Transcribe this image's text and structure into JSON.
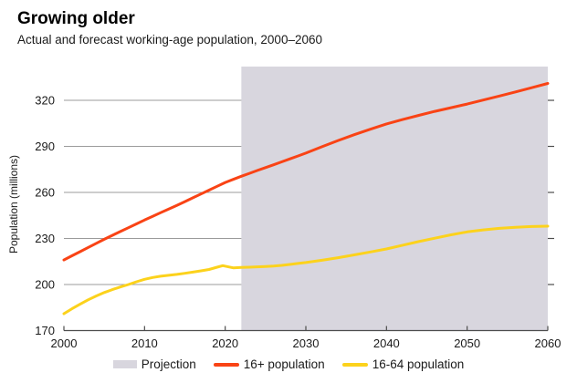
{
  "header": {
    "title": "Growing older",
    "subtitle": "Actual and forecast working-age population, 2000–2060"
  },
  "chart_data": {
    "type": "line",
    "title": "Growing older",
    "subtitle": "Actual and forecast working-age population, 2000–2060",
    "xlabel": "",
    "ylabel": "Population (millions)",
    "xlim": [
      2000,
      2060
    ],
    "ylim": [
      170,
      342
    ],
    "x_ticks": [
      2000,
      2010,
      2020,
      2030,
      2040,
      2050,
      2060
    ],
    "y_ticks": [
      170,
      200,
      230,
      260,
      290,
      320
    ],
    "grid": "horizontal",
    "legend_position": "bottom",
    "projection": {
      "label": "Projection",
      "start": 2022,
      "end": 2060,
      "color": "#d8d6de"
    },
    "style": {
      "grid_color": "#9b9b9b",
      "axis_color": "#4d4d4d",
      "background": "#ffffff"
    },
    "series": [
      {
        "name": "16+ population",
        "color": "#f94315",
        "points": [
          [
            2000,
            216
          ],
          [
            2001,
            218.7
          ],
          [
            2002,
            221.4
          ],
          [
            2003,
            224.1
          ],
          [
            2004,
            226.8
          ],
          [
            2005,
            229.5
          ],
          [
            2006,
            232
          ],
          [
            2007,
            234.5
          ],
          [
            2008,
            237
          ],
          [
            2009,
            239.5
          ],
          [
            2010,
            242
          ],
          [
            2011,
            244.4
          ],
          [
            2012,
            246.8
          ],
          [
            2013,
            249.2
          ],
          [
            2014,
            251.6
          ],
          [
            2015,
            254
          ],
          [
            2016,
            256.5
          ],
          [
            2017,
            259
          ],
          [
            2018,
            261.5
          ],
          [
            2019,
            264
          ],
          [
            2020,
            266.5
          ],
          [
            2021,
            268.5
          ],
          [
            2022,
            270.5
          ],
          [
            2023,
            272.4
          ],
          [
            2024,
            274.3
          ],
          [
            2025,
            276.2
          ],
          [
            2026,
            278
          ],
          [
            2027,
            279.9
          ],
          [
            2028,
            281.8
          ],
          [
            2029,
            283.7
          ],
          [
            2030,
            285.6
          ],
          [
            2032,
            289.8
          ],
          [
            2034,
            293.8
          ],
          [
            2036,
            297.6
          ],
          [
            2038,
            301.2
          ],
          [
            2040,
            304.6
          ],
          [
            2042,
            307.5
          ],
          [
            2044,
            310.2
          ],
          [
            2046,
            312.8
          ],
          [
            2048,
            315.2
          ],
          [
            2050,
            317.6
          ],
          [
            2052,
            320.2
          ],
          [
            2054,
            322.8
          ],
          [
            2056,
            325.5
          ],
          [
            2058,
            328.2
          ],
          [
            2060,
            331
          ]
        ]
      },
      {
        "name": "16-64 population",
        "color": "#fcd21c",
        "points": [
          [
            2000,
            181
          ],
          [
            2001,
            184.2
          ],
          [
            2002,
            187.2
          ],
          [
            2003,
            190
          ],
          [
            2004,
            192.5
          ],
          [
            2005,
            194.8
          ],
          [
            2006,
            196.7
          ],
          [
            2007,
            198.4
          ],
          [
            2008,
            200
          ],
          [
            2009,
            201.8
          ],
          [
            2010,
            203.4
          ],
          [
            2011,
            204.6
          ],
          [
            2012,
            205.4
          ],
          [
            2013,
            206
          ],
          [
            2014,
            206.6
          ],
          [
            2015,
            207.3
          ],
          [
            2016,
            208.1
          ],
          [
            2017,
            208.9
          ],
          [
            2018,
            209.8
          ],
          [
            2019,
            211.3
          ],
          [
            2019.7,
            212.3
          ],
          [
            2021,
            210.9
          ],
          [
            2022,
            211.1
          ],
          [
            2023,
            211.3
          ],
          [
            2024,
            211.5
          ],
          [
            2025,
            211.7
          ],
          [
            2026,
            212
          ],
          [
            2027,
            212.5
          ],
          [
            2028,
            213.1
          ],
          [
            2029,
            213.7
          ],
          [
            2030,
            214.3
          ],
          [
            2032,
            215.8
          ],
          [
            2034,
            217.5
          ],
          [
            2036,
            219.3
          ],
          [
            2038,
            221.2
          ],
          [
            2040,
            223.2
          ],
          [
            2042,
            225.6
          ],
          [
            2044,
            228
          ],
          [
            2046,
            230.2
          ],
          [
            2048,
            232.4
          ],
          [
            2050,
            234.3
          ],
          [
            2052,
            235.6
          ],
          [
            2054,
            236.6
          ],
          [
            2056,
            237.3
          ],
          [
            2058,
            237.8
          ],
          [
            2060,
            238
          ]
        ]
      }
    ]
  },
  "legend": {
    "projection_label": "Projection",
    "series1_label": "16+ population",
    "series2_label": "16-64 population"
  }
}
